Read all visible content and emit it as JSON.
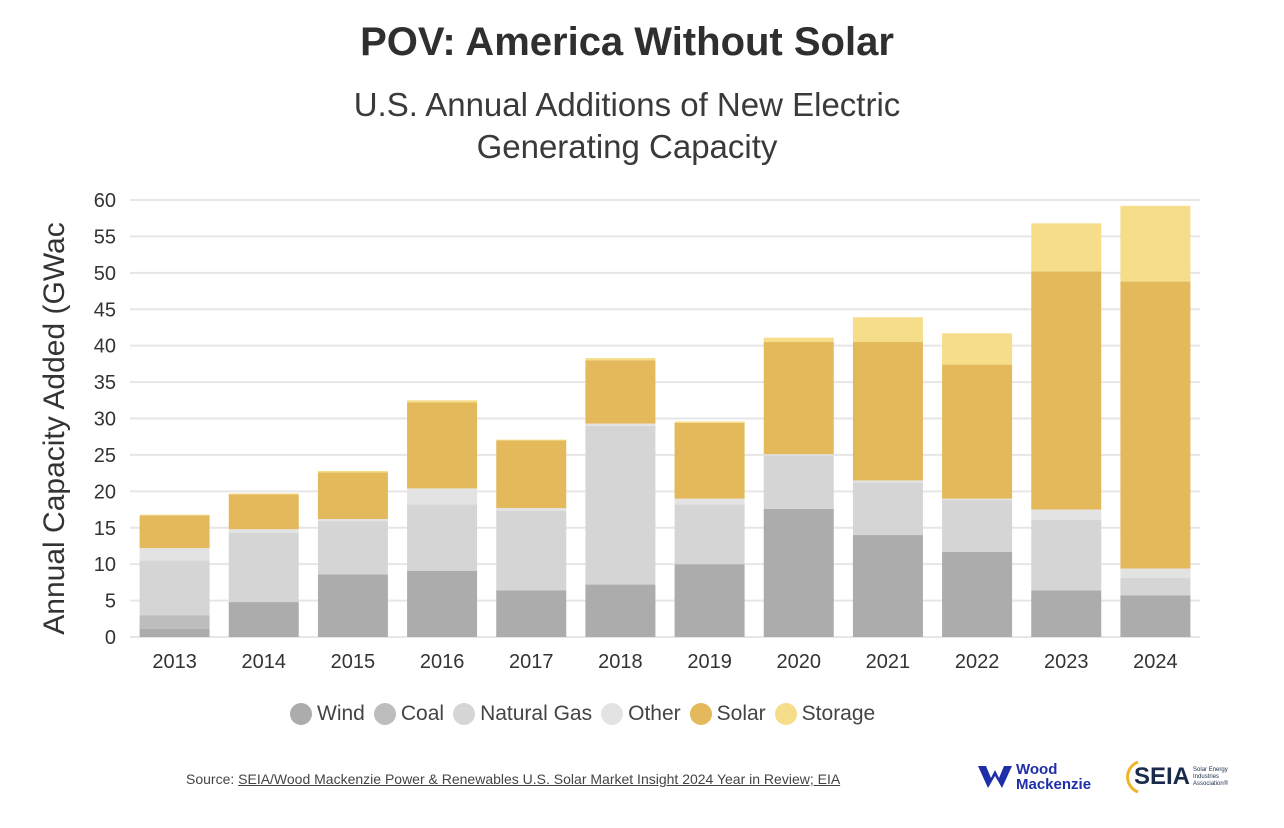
{
  "header": {
    "title": "POV: America Without Solar",
    "subtitle_line1": "U.S. Annual Additions of New Electric",
    "subtitle_line2": "Generating Capacity"
  },
  "chart_data": {
    "type": "bar",
    "stacked": true,
    "title": "POV: America Without Solar",
    "subtitle": "U.S. Annual Additions of New Electric Generating Capacity",
    "xlabel": "",
    "ylabel": "Annual Capacity Added (GWac",
    "ylim": [
      0,
      60
    ],
    "yticks": [
      0,
      5,
      10,
      15,
      20,
      25,
      30,
      35,
      40,
      45,
      50,
      55,
      60
    ],
    "grid": true,
    "categories": [
      "2013",
      "2014",
      "2015",
      "2016",
      "2017",
      "2018",
      "2019",
      "2020",
      "2021",
      "2022",
      "2023",
      "2024"
    ],
    "series": [
      {
        "name": "Wind",
        "color": "#acacac",
        "values": [
          1.1,
          4.8,
          8.6,
          9.1,
          6.4,
          7.2,
          10.0,
          17.6,
          14.0,
          11.7,
          6.4,
          5.7
        ]
      },
      {
        "name": "Coal",
        "color": "#bdbdbd",
        "values": [
          1.9,
          0,
          0,
          0,
          0,
          0,
          0,
          0,
          0,
          0,
          0,
          0
        ]
      },
      {
        "name": "Natural Gas",
        "color": "#d5d5d5",
        "values": [
          7.5,
          9.5,
          7.3,
          9.1,
          10.9,
          21.8,
          8.2,
          7.3,
          7.2,
          7.1,
          9.7,
          2.4
        ]
      },
      {
        "name": "Other",
        "color": "#e3e3e3",
        "values": [
          1.7,
          0.5,
          0.3,
          2.2,
          0.4,
          0.3,
          0.8,
          0.2,
          0.3,
          0.2,
          1.4,
          1.3
        ]
      },
      {
        "name": "Solar",
        "color": "#e3b95b",
        "values": [
          4.5,
          4.8,
          6.4,
          11.8,
          9.3,
          8.7,
          10.4,
          15.4,
          19.0,
          18.4,
          32.7,
          39.4
        ]
      },
      {
        "name": "Storage",
        "color": "#f5dd8a",
        "values": [
          0.1,
          0.1,
          0.2,
          0.3,
          0.1,
          0.3,
          0.2,
          0.6,
          3.4,
          4.3,
          6.6,
          10.4
        ]
      }
    ]
  },
  "legend": [
    {
      "label": "Wind",
      "color": "#acacac"
    },
    {
      "label": "Coal",
      "color": "#bdbdbd"
    },
    {
      "label": "Natural Gas",
      "color": "#d5d5d5"
    },
    {
      "label": "Other",
      "color": "#e3e3e3"
    },
    {
      "label": "Solar",
      "color": "#e3b95b"
    },
    {
      "label": "Storage",
      "color": "#f5dd8a"
    }
  ],
  "footer": {
    "source_prefix": "Source: ",
    "source_link": "SEIA/Wood Mackenzie Power & Renewables U.S. Solar Market Insight 2024 Year in Review; EIA",
    "wm_logo_line1": "Wood",
    "wm_logo_line2": "Mackenzie",
    "seia_logo": "SEIA",
    "seia_small_line1": "Solar Energy",
    "seia_small_line2": "Industries",
    "seia_small_line3": "Association®"
  },
  "colors": {
    "wm_brand": "#1f2fa8",
    "seia_sun": "#f0b429",
    "grid": "#e6e6e6"
  }
}
